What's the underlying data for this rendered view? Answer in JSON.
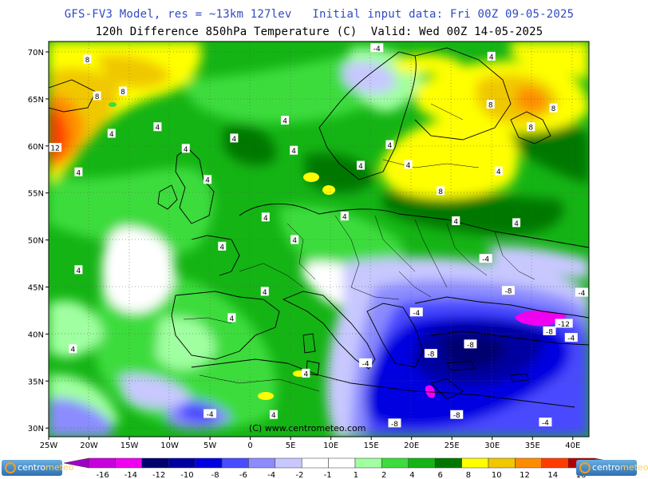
{
  "title_line1": "GFS-FV3 Model, res = ~13km 127lev   Initial input data: Fri 00Z 09-05-2025",
  "title_line2": "120h Difference 850hPa Temperature (C)  Valid: Wed 00Z 14-05-2025",
  "copyright": "(C)  www.centrometeo.com",
  "logo": {
    "left_text": "centro",
    "left_tail": "meteo",
    "right_text": "centro",
    "right_tail": "meteo"
  },
  "colors": {
    "neg16": "#a000c8",
    "neg14": "#c800dc",
    "neg12": "#f000f0",
    "neg10": "#000070",
    "neg8": "#0000a0",
    "neg6": "#0000e0",
    "neg4": "#4a4aff",
    "neg2": "#8c8cff",
    "neg1": "#c8c8ff",
    "zero": "#ffffff",
    "pos1": "#a0ffa0",
    "pos2": "#3cdc3c",
    "pos4": "#14b414",
    "pos6": "#007800",
    "pos8": "#ffff00",
    "pos10": "#f0c800",
    "pos12": "#ff8c00",
    "pos14": "#ff3c00",
    "pos16": "#b40000",
    "pos16plus": "#ff0050"
  },
  "axes": {
    "lat_labels": [
      "70N",
      "65N",
      "60N",
      "55N",
      "50N",
      "45N",
      "40N",
      "35N",
      "30N"
    ],
    "lon_labels": [
      "25W",
      "20W",
      "15W",
      "10W",
      "5W",
      "0",
      "5E",
      "10E",
      "15E",
      "20E",
      "25E",
      "30E",
      "35E",
      "40E"
    ]
  },
  "scale": {
    "labels": [
      "-16",
      "-14",
      "-12",
      "-10",
      "-8",
      "-6",
      "-4",
      "-2",
      "-1",
      "1",
      "2",
      "4",
      "6",
      "8",
      "10",
      "12",
      "14",
      "16"
    ]
  },
  "contour_labels": [
    {
      "text": "8",
      "lon": -20.2,
      "lat": 69.2
    },
    {
      "text": "8",
      "lon": -19.0,
      "lat": 65.3
    },
    {
      "text": "8",
      "lon": -15.8,
      "lat": 65.8
    },
    {
      "text": "12",
      "lon": -24.2,
      "lat": 59.8
    },
    {
      "text": "4",
      "lon": -17.2,
      "lat": 61.3
    },
    {
      "text": "4",
      "lon": -21.3,
      "lat": 57.2
    },
    {
      "text": "4",
      "lon": -11.5,
      "lat": 62.0
    },
    {
      "text": "4",
      "lon": -8.0,
      "lat": 59.7
    },
    {
      "text": "4",
      "lon": -5.3,
      "lat": 56.4
    },
    {
      "text": "4",
      "lon": -2.0,
      "lat": 60.8
    },
    {
      "text": "4",
      "lon": 4.3,
      "lat": 62.7
    },
    {
      "text": "4",
      "lon": 5.4,
      "lat": 59.5
    },
    {
      "text": "-4",
      "lon": 15.7,
      "lat": 70.4
    },
    {
      "text": "4",
      "lon": 29.9,
      "lat": 69.5
    },
    {
      "text": "8",
      "lon": 29.8,
      "lat": 64.4
    },
    {
      "text": "8",
      "lon": 34.8,
      "lat": 62.0
    },
    {
      "text": "8",
      "lon": 37.6,
      "lat": 64.0
    },
    {
      "text": "4",
      "lon": 17.3,
      "lat": 60.1
    },
    {
      "text": "4",
      "lon": 19.6,
      "lat": 58.0
    },
    {
      "text": "4",
      "lon": 13.7,
      "lat": 57.9
    },
    {
      "text": "8",
      "lon": 23.6,
      "lat": 55.2
    },
    {
      "text": "4",
      "lon": 30.8,
      "lat": 57.3
    },
    {
      "text": "4",
      "lon": 25.5,
      "lat": 52.0
    },
    {
      "text": "4",
      "lon": 33.0,
      "lat": 51.8
    },
    {
      "text": "4",
      "lon": 1.9,
      "lat": 52.4
    },
    {
      "text": "4",
      "lon": -3.5,
      "lat": 49.3
    },
    {
      "text": "4",
      "lon": 5.5,
      "lat": 50.0
    },
    {
      "text": "4",
      "lon": 11.7,
      "lat": 52.5
    },
    {
      "text": "4",
      "lon": -21.3,
      "lat": 46.8
    },
    {
      "text": "4",
      "lon": 1.8,
      "lat": 44.5
    },
    {
      "text": "4",
      "lon": -2.3,
      "lat": 41.7
    },
    {
      "text": "4",
      "lon": -22.0,
      "lat": 38.4
    },
    {
      "text": "-4",
      "lon": 29.2,
      "lat": 48.0
    },
    {
      "text": "-4",
      "lon": 20.6,
      "lat": 42.3
    },
    {
      "text": "-8",
      "lon": 32.0,
      "lat": 44.6
    },
    {
      "text": "-4",
      "lon": 41.1,
      "lat": 44.4
    },
    {
      "text": "-12",
      "lon": 38.9,
      "lat": 41.1
    },
    {
      "text": "-8",
      "lon": 37.1,
      "lat": 40.3
    },
    {
      "text": "-4",
      "lon": 39.8,
      "lat": 39.6
    },
    {
      "text": "-8",
      "lon": 27.3,
      "lat": 38.9
    },
    {
      "text": "-8",
      "lon": 22.4,
      "lat": 37.9
    },
    {
      "text": "-4",
      "lon": 14.3,
      "lat": 36.9
    },
    {
      "text": "4",
      "lon": 6.9,
      "lat": 35.8
    },
    {
      "text": "4",
      "lon": 2.9,
      "lat": 31.4
    },
    {
      "text": "-4",
      "lon": -5.0,
      "lat": 31.5
    },
    {
      "text": "-8",
      "lon": 17.9,
      "lat": 30.5
    },
    {
      "text": "-8",
      "lon": 25.6,
      "lat": 31.4
    },
    {
      "text": "-4",
      "lon": 36.6,
      "lat": 30.6
    }
  ]
}
